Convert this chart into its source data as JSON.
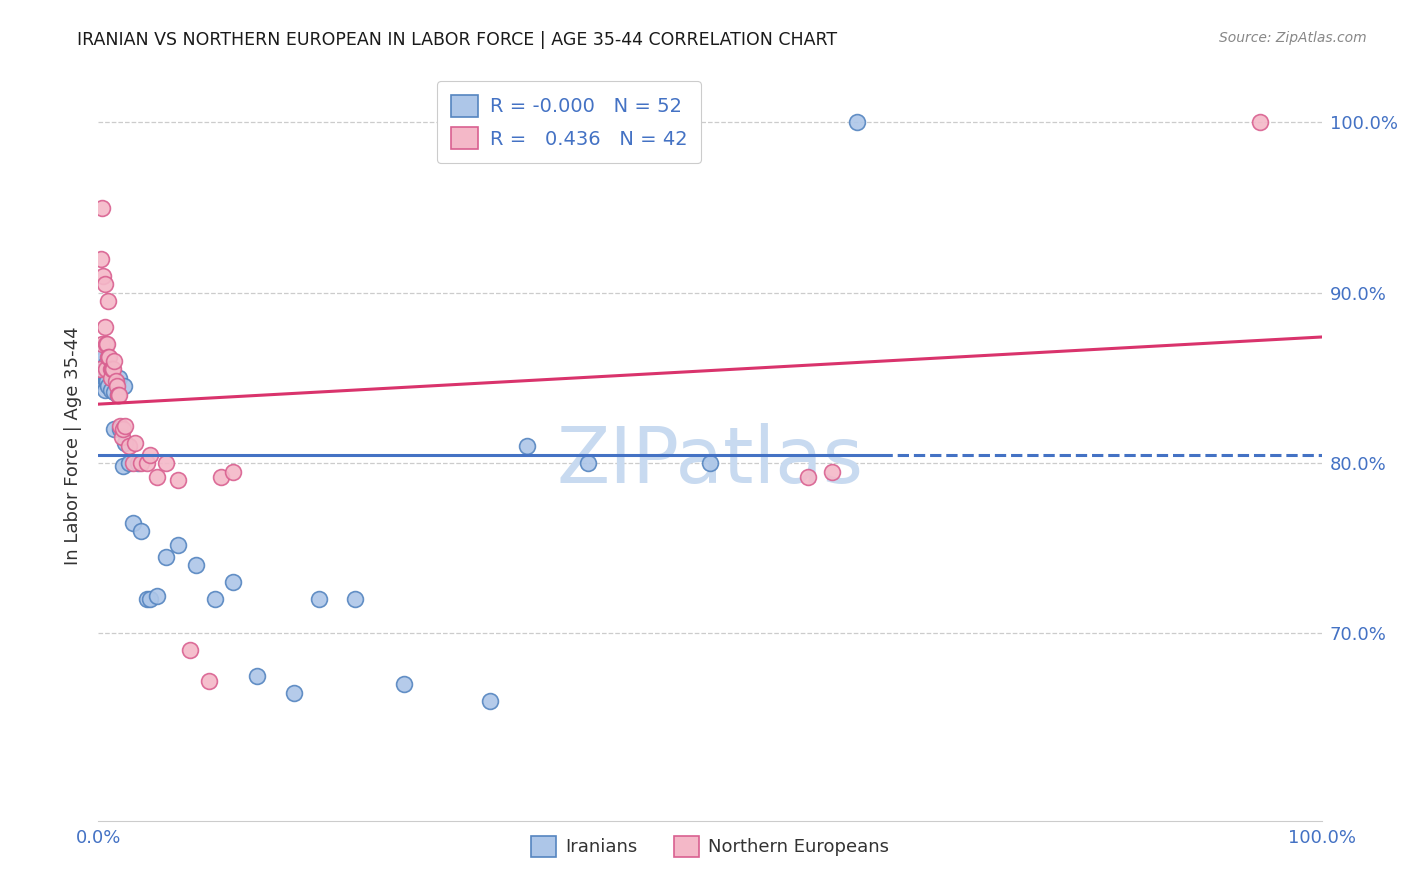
{
  "title": "IRANIAN VS NORTHERN EUROPEAN IN LABOR FORCE | AGE 35-44 CORRELATION CHART",
  "source": "Source: ZipAtlas.com",
  "ylabel": "In Labor Force | Age 35-44",
  "legend_iranian_R": "-0.000",
  "legend_iranian_N": "52",
  "legend_northern_R": "0.436",
  "legend_northern_N": "42",
  "blue_fill": "#adc6e8",
  "blue_edge": "#5585c0",
  "pink_fill": "#f4b8c8",
  "pink_edge": "#d96090",
  "blue_line": "#4472c4",
  "pink_line": "#d9336c",
  "axis_label_color": "#4472c4",
  "grid_color": "#cccccc",
  "watermark_text": "ZIPatlas",
  "watermark_color": "#c8daf0",
  "right_ytick_values": [
    0.7,
    0.8,
    0.9,
    1.0
  ],
  "right_ytick_labels": [
    "70.0%",
    "80.0%",
    "90.0%",
    "100.0%"
  ],
  "iranian_x": [
    0.001,
    0.002,
    0.002,
    0.003,
    0.003,
    0.004,
    0.004,
    0.005,
    0.005,
    0.006,
    0.006,
    0.007,
    0.007,
    0.007,
    0.008,
    0.008,
    0.009,
    0.01,
    0.01,
    0.011,
    0.012,
    0.013,
    0.013,
    0.014,
    0.016,
    0.017,
    0.018,
    0.02,
    0.021,
    0.022,
    0.025,
    0.028,
    0.032,
    0.035,
    0.04,
    0.042,
    0.048,
    0.055,
    0.065,
    0.08,
    0.095,
    0.11,
    0.13,
    0.16,
    0.18,
    0.21,
    0.25,
    0.32,
    0.35,
    0.4,
    0.5,
    0.62
  ],
  "iranian_y": [
    0.86,
    0.855,
    0.848,
    0.862,
    0.85,
    0.855,
    0.848,
    0.852,
    0.843,
    0.858,
    0.848,
    0.855,
    0.852,
    0.848,
    0.855,
    0.845,
    0.855,
    0.853,
    0.843,
    0.85,
    0.85,
    0.842,
    0.82,
    0.848,
    0.84,
    0.85,
    0.82,
    0.798,
    0.845,
    0.812,
    0.8,
    0.765,
    0.8,
    0.76,
    0.72,
    0.72,
    0.722,
    0.745,
    0.752,
    0.74,
    0.72,
    0.73,
    0.675,
    0.665,
    0.72,
    0.72,
    0.67,
    0.66,
    0.81,
    0.8,
    0.8,
    1.0
  ],
  "northern_x": [
    0.001,
    0.002,
    0.003,
    0.003,
    0.004,
    0.005,
    0.005,
    0.006,
    0.006,
    0.007,
    0.008,
    0.008,
    0.009,
    0.01,
    0.01,
    0.011,
    0.012,
    0.013,
    0.014,
    0.015,
    0.016,
    0.017,
    0.018,
    0.019,
    0.02,
    0.022,
    0.025,
    0.028,
    0.03,
    0.035,
    0.04,
    0.042,
    0.048,
    0.055,
    0.065,
    0.075,
    0.09,
    0.1,
    0.11,
    0.58,
    0.6,
    0.95
  ],
  "northern_y": [
    0.855,
    0.92,
    0.95,
    0.87,
    0.91,
    0.905,
    0.88,
    0.87,
    0.855,
    0.87,
    0.895,
    0.862,
    0.862,
    0.855,
    0.85,
    0.855,
    0.855,
    0.86,
    0.848,
    0.845,
    0.84,
    0.84,
    0.822,
    0.815,
    0.82,
    0.822,
    0.81,
    0.8,
    0.812,
    0.8,
    0.8,
    0.805,
    0.792,
    0.8,
    0.79,
    0.69,
    0.672,
    0.792,
    0.795,
    0.792,
    0.795,
    1.0
  ],
  "xlim": [
    0.0,
    1.0
  ],
  "ylim": [
    0.59,
    1.03
  ],
  "blue_line_xend_solid": 0.64
}
